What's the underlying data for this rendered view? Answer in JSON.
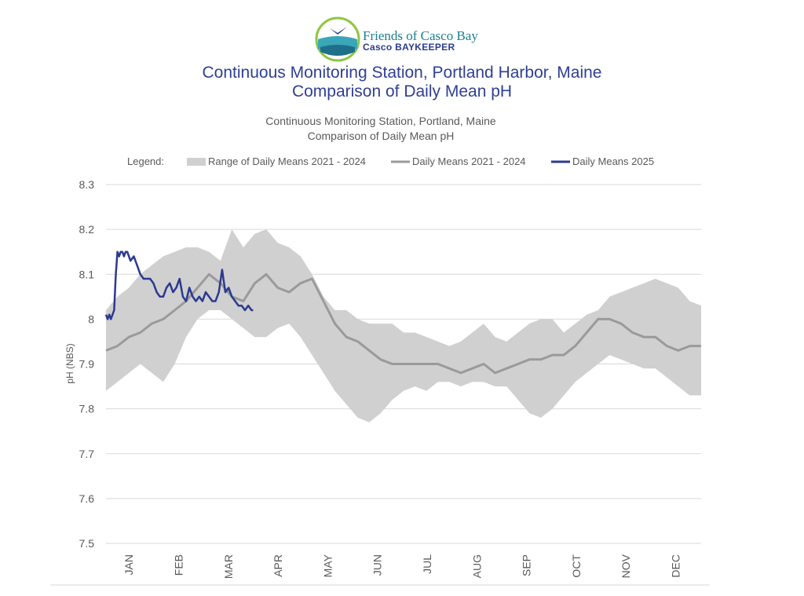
{
  "logo": {
    "name_line1": "Friends of Casco Bay",
    "name_line2": "Casco BAYKEEPER"
  },
  "header": {
    "title_line1": "Continuous Monitoring Station, Portland Harbor, Maine",
    "title_line2": "Comparison of Daily Mean pH",
    "subtitle_line1": "Continuous Monitoring Station, Portland, Maine",
    "subtitle_line2": "Comparison of Daily Mean pH"
  },
  "colors": {
    "band": "#d0d0d0",
    "mean_2021_2024": "#9a9a9a",
    "mean_2025": "#2b3990",
    "grid": "#d9d9d9"
  },
  "chart_data": {
    "type": "line",
    "title": "Comparison of Daily Mean pH",
    "ylabel": "pH (NBS)",
    "xlabel": "",
    "ylim": [
      7.5,
      8.3
    ],
    "yticks": [
      "8.3",
      "8.2",
      "8.1",
      "8",
      "7.9",
      "7.8",
      "7.7",
      "7.6",
      "7.5"
    ],
    "categories": [
      "JAN",
      "FEB",
      "MAR",
      "APR",
      "MAY",
      "JUN",
      "JUL",
      "AUG",
      "SEP",
      "OCT",
      "NOV",
      "DEC"
    ],
    "grid": true,
    "legend": {
      "position": "top",
      "label": "Legend:",
      "entries": [
        "Range of Daily Means 2021 - 2024",
        "Daily Means 2021 - 2024",
        "Daily Means 2025"
      ]
    },
    "x_units": "day of year",
    "series": [
      {
        "name": "Range of Daily Means 2021 - 2024",
        "kind": "band",
        "x": [
          1,
          8,
          15,
          22,
          29,
          36,
          43,
          50,
          57,
          64,
          71,
          78,
          85,
          92,
          99,
          106,
          113,
          120,
          127,
          134,
          141,
          148,
          155,
          162,
          169,
          176,
          183,
          190,
          197,
          204,
          211,
          218,
          225,
          232,
          239,
          246,
          253,
          260,
          267,
          274,
          281,
          288,
          295,
          302,
          309,
          316,
          323,
          330,
          337,
          344,
          351,
          358,
          365
        ],
        "high": [
          8.02,
          8.05,
          8.07,
          8.1,
          8.12,
          8.14,
          8.15,
          8.16,
          8.16,
          8.15,
          8.13,
          8.2,
          8.16,
          8.19,
          8.2,
          8.17,
          8.16,
          8.14,
          8.1,
          8.05,
          8.02,
          8.02,
          8.0,
          7.99,
          7.99,
          7.99,
          7.97,
          7.97,
          7.96,
          7.95,
          7.94,
          7.95,
          7.97,
          7.99,
          7.96,
          7.95,
          7.97,
          7.99,
          8.0,
          8.0,
          7.97,
          7.99,
          8.01,
          8.02,
          8.05,
          8.06,
          8.07,
          8.08,
          8.09,
          8.08,
          8.07,
          8.04,
          8.03
        ],
        "low": [
          7.84,
          7.86,
          7.88,
          7.9,
          7.88,
          7.86,
          7.9,
          7.96,
          8.0,
          8.02,
          8.02,
          8.0,
          7.98,
          7.96,
          7.96,
          7.98,
          7.99,
          7.96,
          7.92,
          7.88,
          7.84,
          7.81,
          7.78,
          7.77,
          7.79,
          7.82,
          7.84,
          7.85,
          7.84,
          7.86,
          7.86,
          7.85,
          7.86,
          7.86,
          7.85,
          7.85,
          7.82,
          7.79,
          7.78,
          7.8,
          7.83,
          7.86,
          7.88,
          7.9,
          7.92,
          7.91,
          7.9,
          7.89,
          7.89,
          7.87,
          7.85,
          7.83,
          7.83
        ]
      },
      {
        "name": "Daily Means 2021 - 2024",
        "kind": "line",
        "x": [
          1,
          8,
          15,
          22,
          29,
          36,
          43,
          50,
          57,
          64,
          71,
          78,
          85,
          92,
          99,
          106,
          113,
          120,
          127,
          134,
          141,
          148,
          155,
          162,
          169,
          176,
          183,
          190,
          197,
          204,
          211,
          218,
          225,
          232,
          239,
          246,
          253,
          260,
          267,
          274,
          281,
          288,
          295,
          302,
          309,
          316,
          323,
          330,
          337,
          344,
          351,
          358,
          365
        ],
        "y": [
          7.93,
          7.94,
          7.96,
          7.97,
          7.99,
          8.0,
          8.02,
          8.04,
          8.07,
          8.1,
          8.08,
          8.05,
          8.04,
          8.08,
          8.1,
          8.07,
          8.06,
          8.08,
          8.09,
          8.04,
          7.99,
          7.96,
          7.95,
          7.93,
          7.91,
          7.9,
          7.9,
          7.9,
          7.9,
          7.9,
          7.89,
          7.88,
          7.89,
          7.9,
          7.88,
          7.89,
          7.9,
          7.91,
          7.91,
          7.92,
          7.92,
          7.94,
          7.97,
          8.0,
          8.0,
          7.99,
          7.97,
          7.96,
          7.96,
          7.94,
          7.93,
          7.94,
          7.94
        ]
      },
      {
        "name": "Daily Means 2025",
        "kind": "line",
        "x": [
          1,
          2,
          3,
          4,
          5,
          6,
          7,
          8,
          9,
          10,
          11,
          12,
          13,
          14,
          16,
          18,
          20,
          22,
          24,
          26,
          28,
          30,
          32,
          34,
          36,
          38,
          40,
          42,
          44,
          46,
          48,
          50,
          52,
          54,
          56,
          58,
          60,
          62,
          64,
          66,
          68,
          70,
          72,
          74,
          76,
          78,
          80,
          82,
          84,
          86,
          88,
          90,
          91
        ],
        "y": [
          8.01,
          8.0,
          8.01,
          8.0,
          8.01,
          8.02,
          8.1,
          8.15,
          8.14,
          8.15,
          8.15,
          8.14,
          8.15,
          8.15,
          8.13,
          8.14,
          8.12,
          8.1,
          8.09,
          8.09,
          8.09,
          8.08,
          8.06,
          8.05,
          8.05,
          8.07,
          8.08,
          8.06,
          8.07,
          8.09,
          8.05,
          8.04,
          8.07,
          8.05,
          8.04,
          8.05,
          8.04,
          8.06,
          8.05,
          8.04,
          8.04,
          8.06,
          8.11,
          8.06,
          8.07,
          8.05,
          8.04,
          8.03,
          8.03,
          8.02,
          8.03,
          8.02,
          8.02
        ]
      }
    ]
  }
}
